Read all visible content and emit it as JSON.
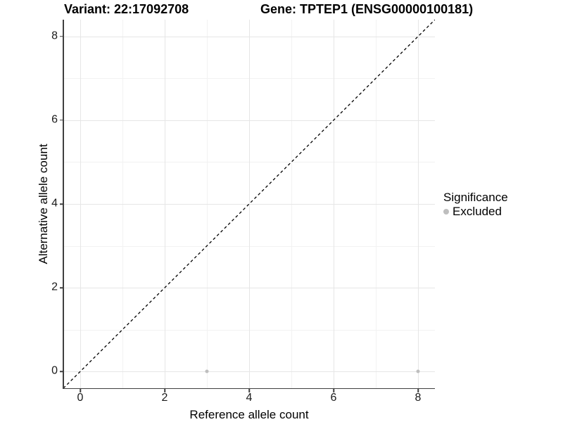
{
  "header": {
    "variant_title": "Variant: 22:17092708",
    "gene_title": "Gene: TPTEP1 (ENSG00000100181)"
  },
  "legend": {
    "title": "Significance",
    "items": [
      {
        "label": "Excluded",
        "color": "#bebebe"
      }
    ]
  },
  "chart_data": {
    "type": "scatter",
    "title_left": "Variant: 22:17092708",
    "title_right": "Gene: TPTEP1 (ENSG00000100181)",
    "xlabel": "Reference allele count",
    "ylabel": "Alternative allele count",
    "xlim": [
      -0.4,
      8.4
    ],
    "ylim": [
      -0.4,
      8.4
    ],
    "x_ticks": [
      0,
      2,
      4,
      6,
      8
    ],
    "y_ticks": [
      0,
      2,
      4,
      6,
      8
    ],
    "x_minor_ticks": [
      1,
      3,
      5,
      7
    ],
    "y_minor_ticks": [
      1,
      3,
      5,
      7
    ],
    "grid": "major+minor",
    "legend_position": "right",
    "legend_title": "Significance",
    "series": [
      {
        "name": "Excluded",
        "color": "#bebebe",
        "points": [
          [
            3,
            0
          ],
          [
            8,
            0
          ]
        ]
      }
    ],
    "reference_line": {
      "style": "dashed",
      "color": "#000000",
      "from": [
        -0.4,
        -0.4
      ],
      "to": [
        8.4,
        8.4
      ],
      "meaning": "identity line y = x"
    }
  },
  "colors": {
    "background": "#ffffff",
    "axis": "#3f3f3f",
    "grid_major": "#e6e6e6",
    "grid_minor": "#f2f2f2",
    "point": "#bebebe",
    "text": "#000000"
  }
}
